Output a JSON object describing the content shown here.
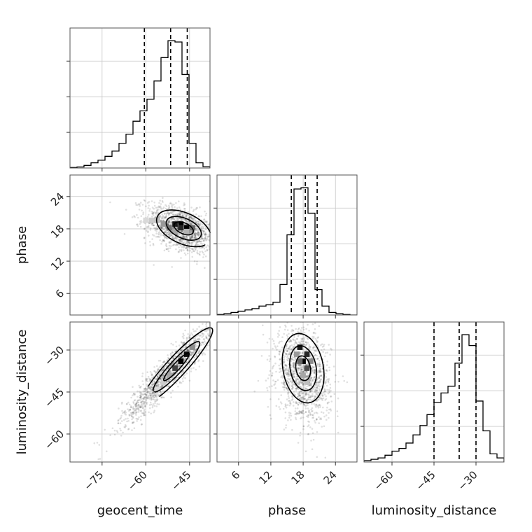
{
  "chart_data": {
    "type": "corner",
    "parameters": [
      "geocent_time",
      "phase",
      "luminosity_distance"
    ],
    "axis_ranges": {
      "geocent_time": [
        -86,
        -38
      ],
      "phase": [
        2,
        28
      ],
      "luminosity_distance": [
        -70,
        -20
      ]
    },
    "ticks": {
      "geocent_time": {
        "values": [
          -75,
          -60,
          -45
        ],
        "labels": [
          "−75",
          "−60",
          "−45"
        ]
      },
      "phase": {
        "values": [
          6,
          12,
          18,
          24
        ],
        "labels": [
          "6",
          "12",
          "18",
          "24"
        ]
      },
      "luminosity_distance": {
        "values": [
          -60,
          -45,
          -30
        ],
        "labels": [
          "−60",
          "−45",
          "−30"
        ]
      }
    },
    "histograms": {
      "geocent_time": {
        "bin_edges": [
          -86,
          -83.6,
          -81.2,
          -78.8,
          -76.4,
          -74,
          -71.6,
          -69.2,
          -66.8,
          -64.4,
          -62,
          -59.6,
          -57.2,
          -54.8,
          -52.4,
          -50,
          -47.6,
          -45.2,
          -42.8,
          -40.4,
          -38
        ],
        "counts": [
          0.004,
          0.008,
          0.02,
          0.04,
          0.06,
          0.09,
          0.13,
          0.19,
          0.26,
          0.36,
          0.44,
          0.53,
          0.67,
          0.85,
          0.98,
          0.97,
          0.72,
          0.19,
          0.04,
          0.01
        ],
        "quantiles": [
          -60.5,
          -51.5,
          -45.8
        ]
      },
      "phase": {
        "bin_edges": [
          2,
          3.3,
          4.6,
          5.9,
          7.2,
          8.5,
          9.8,
          11.1,
          12.4,
          13.7,
          15,
          16.3,
          17.6,
          18.9,
          20.2,
          21.5,
          22.8,
          24.1,
          25.4,
          26.7,
          28
        ],
        "counts": [
          0.004,
          0.01,
          0.02,
          0.03,
          0.04,
          0.05,
          0.07,
          0.08,
          0.1,
          0.24,
          0.63,
          0.99,
          1.0,
          0.8,
          0.2,
          0.07,
          0.02,
          0.01,
          0.004,
          0
        ],
        "quantiles": [
          15.8,
          18.4,
          20.6
        ]
      },
      "luminosity_distance": {
        "bin_edges": [
          -70,
          -67.5,
          -65,
          -62.5,
          -60,
          -57.5,
          -55,
          -52.5,
          -50,
          -47.5,
          -45,
          -42.5,
          -40,
          -37.5,
          -35,
          -32.5,
          -30,
          -27.5,
          -25,
          -22.5,
          -20
        ],
        "counts": [
          0.01,
          0.02,
          0.03,
          0.05,
          0.08,
          0.1,
          0.14,
          0.2,
          0.27,
          0.35,
          0.44,
          0.51,
          0.56,
          0.73,
          0.94,
          0.86,
          0.45,
          0.23,
          0.06,
          0.03
        ],
        "quantiles": [
          -45,
          -36,
          -30
        ]
      }
    },
    "pairs": [
      {
        "x": "geocent_time",
        "y": "phase",
        "center": [
          -48,
          18
        ],
        "sigma": [
          6,
          2.2
        ],
        "rho": -0.45,
        "peak": [
          -46,
          18.2
        ],
        "density_cells": [
          [
            -50,
            18.9,
            0.9
          ],
          [
            -48,
            18.9,
            1.0
          ],
          [
            -46,
            18.2,
            1.0
          ],
          [
            -48,
            18.2,
            0.85
          ],
          [
            -52,
            18.2,
            0.55
          ],
          [
            -44,
            18.2,
            0.6
          ],
          [
            -54,
            18.9,
            0.4
          ],
          [
            -50,
            17.5,
            0.35
          ],
          [
            -56,
            19.6,
            0.25
          ],
          [
            -58,
            19.6,
            0.2
          ],
          [
            -60,
            19.6,
            0.15
          ],
          [
            -46,
            17.5,
            0.3
          ]
        ]
      },
      {
        "x": "geocent_time",
        "y": "luminosity_distance",
        "center": [
          -52,
          -38
        ],
        "sigma": [
          8,
          9
        ],
        "rho": 0.93,
        "peak": [
          -47,
          -34
        ],
        "density_cells": [
          [
            -48,
            -34,
            1.0
          ],
          [
            -46,
            -31.5,
            0.95
          ],
          [
            -50,
            -36.5,
            0.75
          ],
          [
            -44,
            -29,
            0.45
          ],
          [
            -52,
            -39,
            0.35
          ],
          [
            -54,
            -41.5,
            0.2
          ],
          [
            -56,
            -44,
            0.15
          ]
        ]
      },
      {
        "x": "phase",
        "y": "luminosity_distance",
        "center": [
          18,
          -39
        ],
        "sigma": [
          2.5,
          8
        ],
        "rho": -0.2,
        "peak": [
          18,
          -34
        ],
        "density_cells": [
          [
            17.4,
            -29,
            0.9
          ],
          [
            18.7,
            -31.5,
            0.85
          ],
          [
            18,
            -34,
            1.0
          ],
          [
            18.7,
            -36.5,
            0.7
          ],
          [
            17.4,
            -34,
            0.6
          ],
          [
            19.4,
            -34,
            0.45
          ],
          [
            18,
            -39,
            0.35
          ],
          [
            18.7,
            -41.5,
            0.25
          ],
          [
            16.8,
            -31.5,
            0.4
          ]
        ]
      }
    ],
    "contour_levels": [
      "0.39",
      "0.86",
      "0.99"
    ],
    "grid": true,
    "color": "#000000"
  }
}
